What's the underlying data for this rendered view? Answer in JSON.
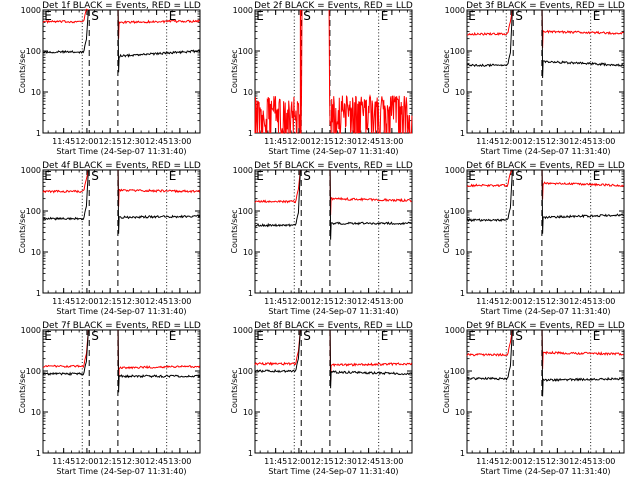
{
  "figure": {
    "xlabel": "Start Time (24-Sep-07 11:31:40)",
    "ylabel": "Counts/sec",
    "x_tick_labels": [
      "11:45",
      "12:00",
      "12:15",
      "12:30",
      "12:45",
      "13:00"
    ],
    "y_tick_labels": [
      "1",
      "10",
      "100",
      "1000"
    ],
    "colors": {
      "events": "#000000",
      "lld": "#ff0000",
      "axes": "#000000",
      "background": "#ffffff"
    }
  },
  "chart_data": [
    {
      "title": "Det 1f BLACK = Events, RED = LLD",
      "type": "line",
      "xlim": [
        "11:31:40",
        "13:13:00"
      ],
      "ylim": [
        1,
        1000
      ],
      "log_y": true,
      "markers": [
        "E",
        "S",
        "E"
      ],
      "event_levels": [
        95,
        75,
        100
      ],
      "lld_levels": [
        520,
        500,
        540
      ],
      "noisy": false
    },
    {
      "title": "Det 2f BLACK = Events, RED = LLD",
      "type": "line",
      "xlim": [
        "11:31:40",
        "13:13:00"
      ],
      "ylim": [
        1,
        1000
      ],
      "log_y": true,
      "markers": [
        "E",
        "S",
        "E"
      ],
      "event_levels": [
        null,
        null,
        null
      ],
      "lld_levels": [
        4,
        4,
        3
      ],
      "noisy": true
    },
    {
      "title": "Det 3f BLACK = Events, RED = LLD",
      "type": "line",
      "xlim": [
        "11:31:40",
        "13:13:00"
      ],
      "ylim": [
        1,
        1000
      ],
      "log_y": true,
      "markers": [
        "E",
        "S",
        "E"
      ],
      "event_levels": [
        45,
        55,
        45
      ],
      "lld_levels": [
        260,
        300,
        270
      ],
      "noisy": false
    },
    {
      "title": "Det 4f BLACK = Events, RED = LLD",
      "type": "line",
      "xlim": [
        "11:31:40",
        "13:13:00"
      ],
      "ylim": [
        1,
        1000
      ],
      "log_y": true,
      "markers": [
        "E",
        "S",
        "E"
      ],
      "event_levels": [
        65,
        70,
        75
      ],
      "lld_levels": [
        300,
        320,
        300
      ],
      "noisy": false
    },
    {
      "title": "Det 5f BLACK = Events, RED = LLD",
      "type": "line",
      "xlim": [
        "11:31:40",
        "13:13:00"
      ],
      "ylim": [
        1,
        1000
      ],
      "log_y": true,
      "markers": [
        "E",
        "S",
        "E"
      ],
      "event_levels": [
        45,
        50,
        50
      ],
      "lld_levels": [
        170,
        200,
        180
      ],
      "noisy": false
    },
    {
      "title": "Det 6f BLACK = Events, RED = LLD",
      "type": "line",
      "xlim": [
        "11:31:40",
        "13:13:00"
      ],
      "ylim": [
        1,
        1000
      ],
      "log_y": true,
      "markers": [
        "E",
        "S",
        "E"
      ],
      "event_levels": [
        60,
        70,
        80
      ],
      "lld_levels": [
        420,
        480,
        420
      ],
      "noisy": false
    },
    {
      "title": "Det 7f BLACK = Events, RED = LLD",
      "type": "line",
      "xlim": [
        "11:31:40",
        "13:13:00"
      ],
      "ylim": [
        1,
        1000
      ],
      "log_y": true,
      "markers": [
        "E",
        "S",
        "E"
      ],
      "event_levels": [
        85,
        75,
        75
      ],
      "lld_levels": [
        130,
        120,
        130
      ],
      "noisy": false
    },
    {
      "title": "Det 8f BLACK = Events, RED = LLD",
      "type": "line",
      "xlim": [
        "11:31:40",
        "13:13:00"
      ],
      "ylim": [
        1,
        1000
      ],
      "log_y": true,
      "markers": [
        "E",
        "S",
        "E"
      ],
      "event_levels": [
        100,
        95,
        85
      ],
      "lld_levels": [
        150,
        140,
        150
      ],
      "noisy": false
    },
    {
      "title": "Det 9f BLACK = Events, RED = LLD",
      "type": "line",
      "xlim": [
        "11:31:40",
        "13:13:00"
      ],
      "ylim": [
        1,
        1000
      ],
      "log_y": true,
      "markers": [
        "E",
        "S",
        "E"
      ],
      "event_levels": [
        65,
        60,
        65
      ],
      "lld_levels": [
        250,
        280,
        260
      ],
      "noisy": false
    }
  ]
}
